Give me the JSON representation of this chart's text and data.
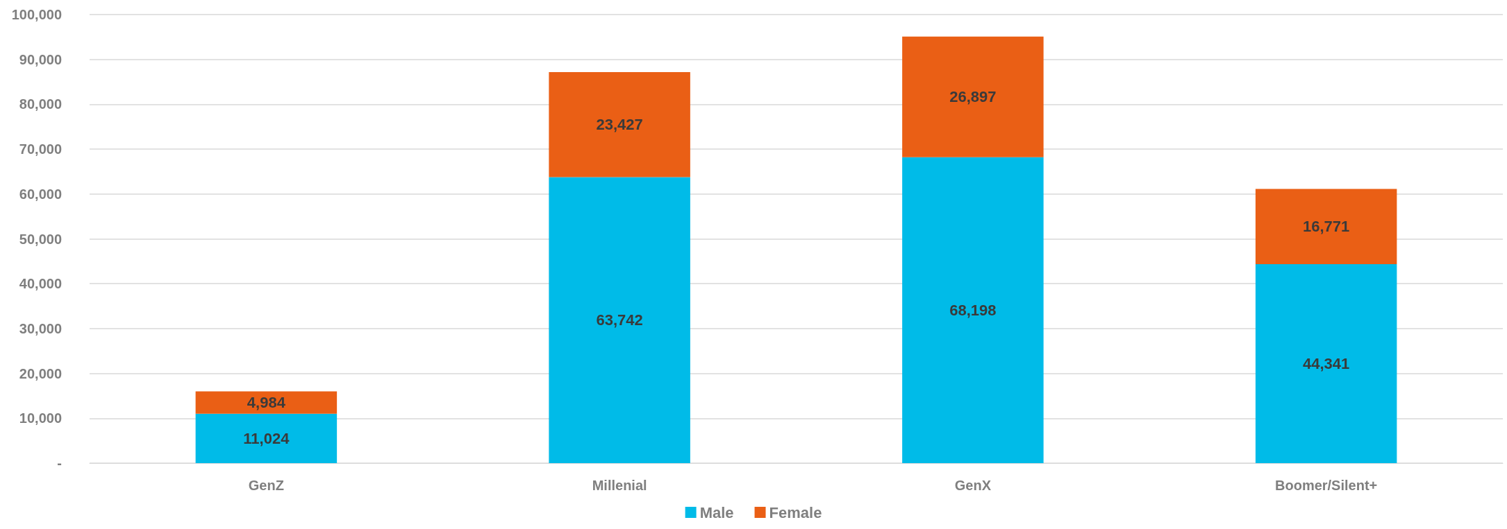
{
  "chart_data": {
    "type": "bar",
    "stacked": true,
    "categories": [
      "GenZ",
      "Millenial",
      "GenX",
      "Boomer/Silent+"
    ],
    "series": [
      {
        "name": "Male",
        "color": "#00bbe8",
        "values": [
          11024,
          63742,
          68198,
          44341
        ],
        "value_labels": [
          "11,024",
          "63,742",
          "68,198",
          "44,341"
        ]
      },
      {
        "name": "Female",
        "color": "#ea5f15",
        "values": [
          4984,
          23427,
          26897,
          16771
        ],
        "value_labels": [
          "4,984",
          "23,427",
          "26,897",
          "16,771"
        ]
      }
    ],
    "ylim": [
      0,
      100000
    ],
    "yticks": [
      {
        "value": 0,
        "label": "-"
      },
      {
        "value": 10000,
        "label": "10,000"
      },
      {
        "value": 20000,
        "label": "20,000"
      },
      {
        "value": 30000,
        "label": "30,000"
      },
      {
        "value": 40000,
        "label": "40,000"
      },
      {
        "value": 50000,
        "label": "50,000"
      },
      {
        "value": 60000,
        "label": "60,000"
      },
      {
        "value": 70000,
        "label": "70,000"
      },
      {
        "value": 80000,
        "label": "80,000"
      },
      {
        "value": 90000,
        "label": "90,000"
      },
      {
        "value": 100000,
        "label": "100,000"
      }
    ],
    "grid": "y",
    "legend": "bottom"
  }
}
